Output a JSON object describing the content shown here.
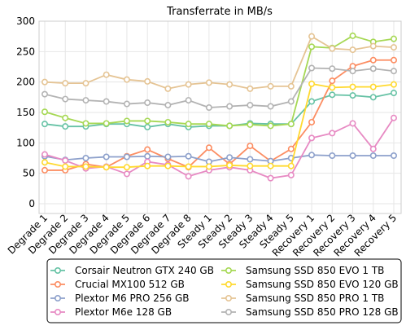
{
  "chart_data": {
    "type": "line",
    "title": "Transferrate in MB/s",
    "xlabel": "",
    "ylabel": "",
    "ylim": [
      0,
      300
    ],
    "yticks": [
      0,
      50,
      100,
      150,
      200,
      250,
      300
    ],
    "grid": true,
    "legend_position": "bottom",
    "categories": [
      "Degrade 1",
      "Degrade 2",
      "Degrade 3",
      "Degrade 4",
      "Degrade 5",
      "Degrade 6",
      "Degrade 7",
      "Degrade 8",
      "Steady 1",
      "Steady 2",
      "Steady 3",
      "Steady 4",
      "Steady 5",
      "Recovery 1",
      "Recovery 2",
      "Recovery 3",
      "Recovery 4",
      "Recovery 5"
    ],
    "series": [
      {
        "name": "Corsair Neutron GTX 240 GB",
        "color": "#66c2a5",
        "values": [
          131,
          127,
          127,
          131,
          131,
          126,
          131,
          126,
          128,
          128,
          132,
          131,
          131,
          168,
          179,
          178,
          175,
          182
        ]
      },
      {
        "name": "Crucial MX100 512 GB",
        "color": "#fc8d62",
        "values": [
          55,
          55,
          65,
          60,
          78,
          89,
          74,
          60,
          92,
          65,
          95,
          70,
          90,
          134,
          202,
          226,
          236,
          236
        ]
      },
      {
        "name": "Plextor M6 PRO 256 GB",
        "color": "#8da0cb",
        "values": [
          78,
          72,
          75,
          77,
          77,
          78,
          77,
          78,
          69,
          76,
          73,
          70,
          75,
          80,
          79,
          79,
          79,
          79
        ]
      },
      {
        "name": "Plextor M6e 128 GB",
        "color": "#e78ac3",
        "values": [
          81,
          71,
          58,
          61,
          49,
          69,
          64,
          45,
          55,
          60,
          55,
          42,
          47,
          108,
          116,
          132,
          90,
          141
        ]
      },
      {
        "name": "Samsung SSD 850 EVO 1 TB",
        "color": "#a6d854",
        "values": [
          151,
          141,
          132,
          132,
          136,
          136,
          134,
          131,
          131,
          128,
          130,
          128,
          131,
          258,
          256,
          276,
          266,
          271
        ]
      },
      {
        "name": "Samsung SSD 850 EVO 120 GB",
        "color": "#ffd92f",
        "values": [
          68,
          61,
          61,
          60,
          60,
          62,
          62,
          61,
          61,
          63,
          62,
          62,
          62,
          197,
          191,
          192,
          192,
          196
        ]
      },
      {
        "name": "Samsung SSD 850 PRO 1 TB",
        "color": "#e5c494",
        "values": [
          200,
          198,
          198,
          212,
          204,
          201,
          189,
          196,
          199,
          196,
          189,
          193,
          193,
          275,
          255,
          253,
          259,
          257
        ]
      },
      {
        "name": "Samsung SSD 850 PRO 128 GB",
        "color": "#b3b3b3",
        "values": [
          180,
          172,
          170,
          168,
          164,
          166,
          162,
          170,
          158,
          160,
          162,
          160,
          168,
          223,
          222,
          218,
          222,
          218
        ]
      }
    ]
  }
}
